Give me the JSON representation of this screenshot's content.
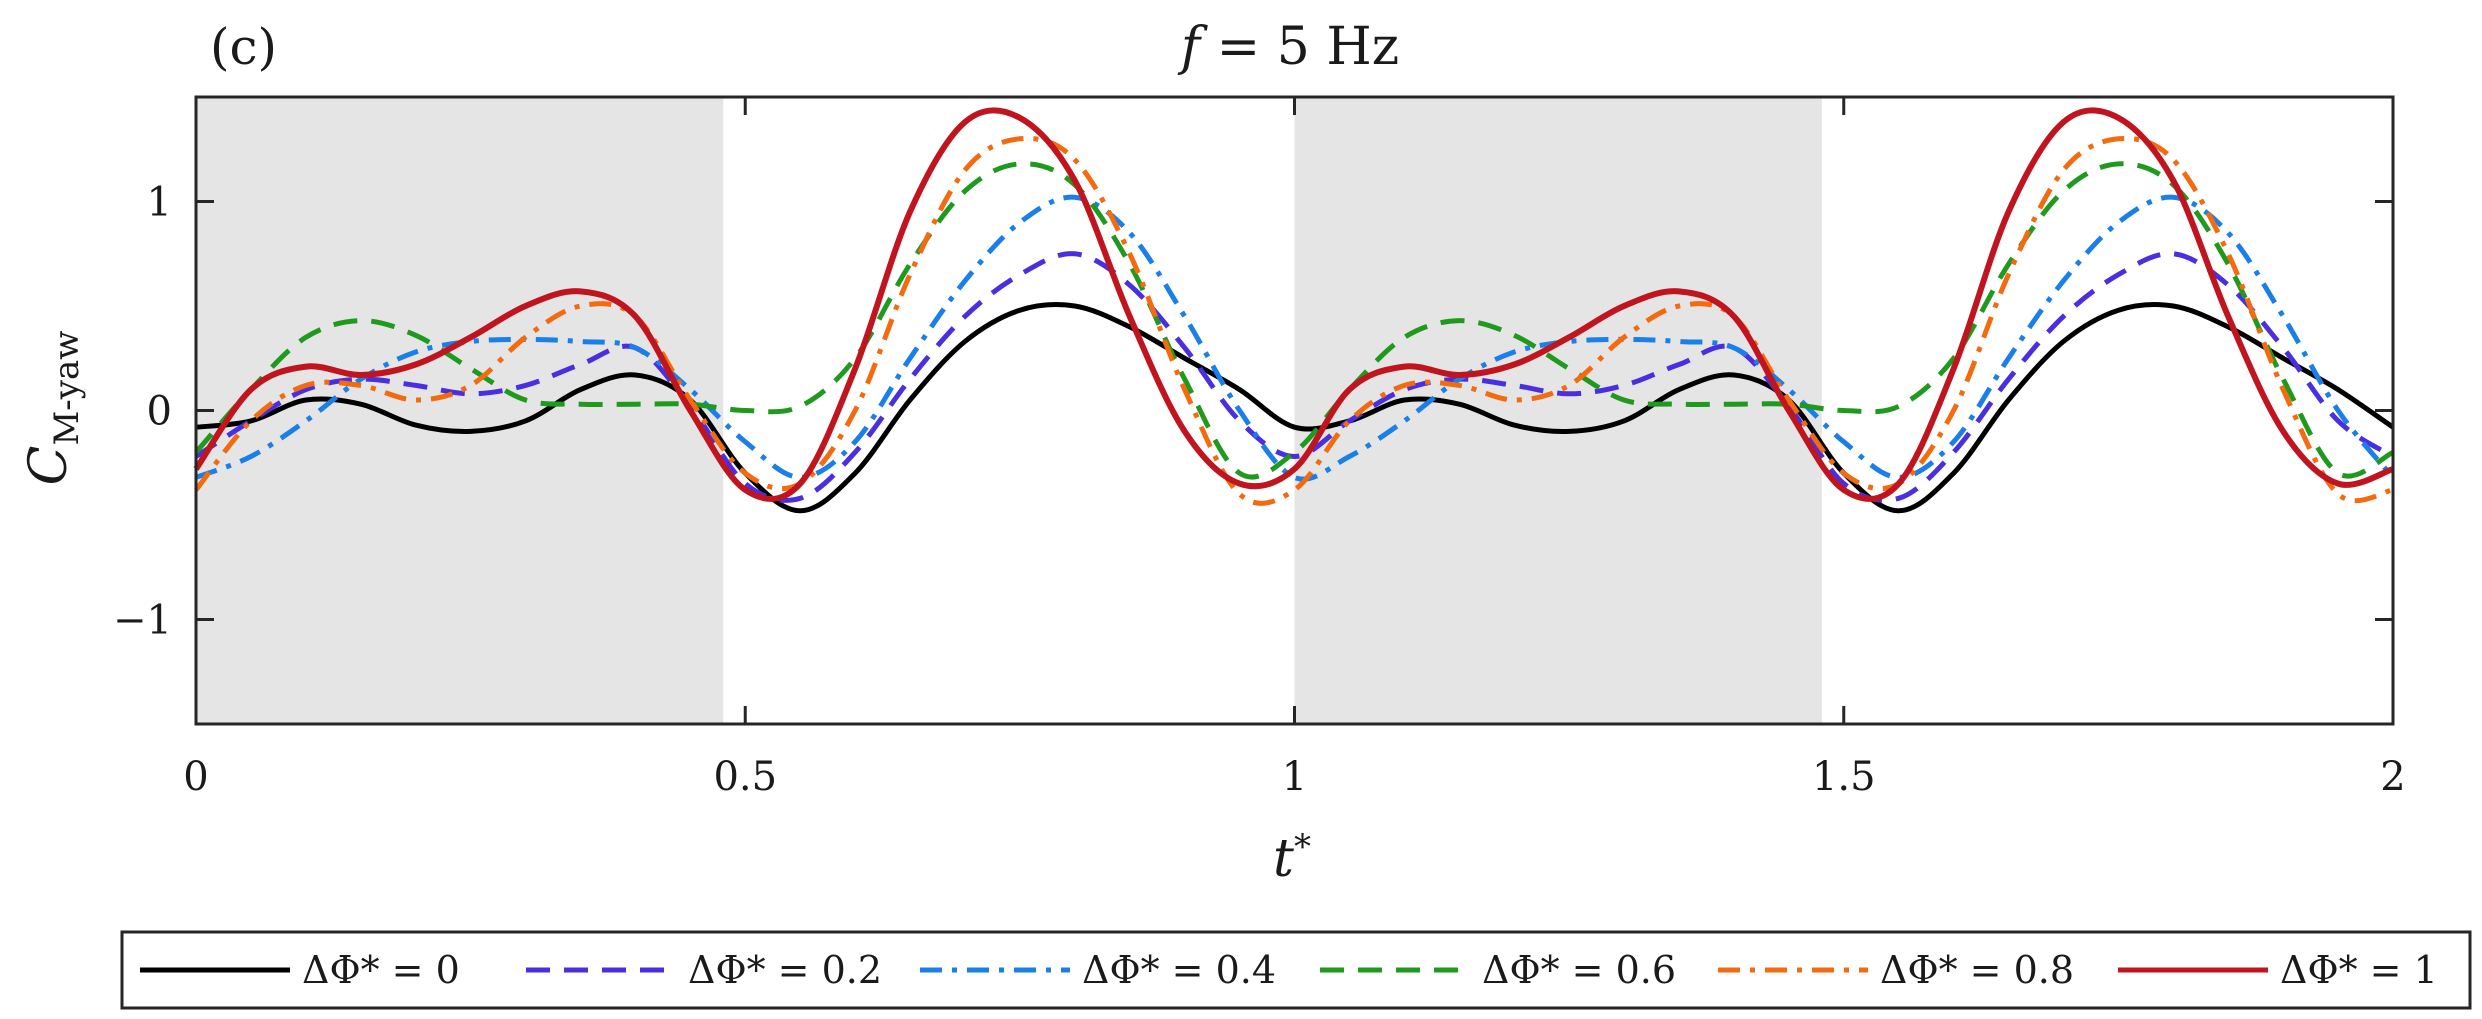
{
  "panel_label": "(c)",
  "title_var": "f",
  "title_rest": " = 5 Hz",
  "xlabel_var": "t",
  "xlabel_sup": "*",
  "ylabel_var": "C",
  "ylabel_sub": "M-yaw",
  "chart_data": {
    "type": "line",
    "title": "f = 5 Hz",
    "xlabel": "t*",
    "ylabel": "C_M-yaw",
    "xlim": [
      0,
      2
    ],
    "ylim": [
      -1.5,
      1.5
    ],
    "xticks": [
      0,
      0.5,
      1,
      1.5,
      2
    ],
    "xtick_labels": [
      "0",
      "0.5",
      "1",
      "1.5",
      "2"
    ],
    "yticks": [
      -1,
      0,
      1
    ],
    "ytick_labels": [
      "−1",
      "0",
      "1"
    ],
    "shaded_intervals": [
      [
        0,
        0.48
      ],
      [
        1,
        1.48
      ]
    ],
    "shade_color": "#e5e5e5",
    "legend_position": "bottom",
    "x": [
      0,
      0.05,
      0.1,
      0.15,
      0.2,
      0.25,
      0.3,
      0.35,
      0.4,
      0.45,
      0.5,
      0.55,
      0.6,
      0.65,
      0.7,
      0.75,
      0.8,
      0.85,
      0.9,
      0.95,
      1.0,
      1.05,
      1.1,
      1.15,
      1.2,
      1.25,
      1.3,
      1.35,
      1.4,
      1.45,
      1.5,
      1.55,
      1.6,
      1.65,
      1.7,
      1.75,
      1.8,
      1.85,
      1.9,
      1.95,
      2.0
    ],
    "series": [
      {
        "name": "ΔΦ* = 0",
        "color": "#000000",
        "dash": "solid",
        "values": [
          -0.08,
          -0.05,
          0.05,
          0.03,
          -0.07,
          -0.1,
          -0.05,
          0.1,
          0.17,
          0.05,
          -0.3,
          -0.48,
          -0.3,
          0.05,
          0.33,
          0.48,
          0.5,
          0.4,
          0.25,
          0.1,
          -0.08,
          -0.05,
          0.05,
          0.03,
          -0.07,
          -0.1,
          -0.05,
          0.1,
          0.17,
          0.05,
          -0.3,
          -0.48,
          -0.3,
          0.05,
          0.33,
          0.48,
          0.5,
          0.4,
          0.25,
          0.1,
          -0.08
        ]
      },
      {
        "name": "ΔΦ* = 0.2",
        "color": "#4a2fe0",
        "dash": "dash",
        "values": [
          -0.22,
          -0.05,
          0.1,
          0.15,
          0.12,
          0.08,
          0.12,
          0.22,
          0.3,
          0.02,
          -0.35,
          -0.42,
          -0.2,
          0.15,
          0.45,
          0.65,
          0.75,
          0.6,
          0.3,
          -0.05,
          -0.22,
          -0.05,
          0.1,
          0.15,
          0.12,
          0.08,
          0.12,
          0.22,
          0.3,
          0.02,
          -0.35,
          -0.42,
          -0.2,
          0.15,
          0.45,
          0.65,
          0.75,
          0.6,
          0.3,
          -0.05,
          -0.22
        ]
      },
      {
        "name": "ΔΦ* = 0.4",
        "color": "#1a7fe8",
        "dash": "dashdot",
        "values": [
          -0.32,
          -0.22,
          -0.05,
          0.15,
          0.28,
          0.33,
          0.34,
          0.33,
          0.3,
          0.1,
          -0.15,
          -0.32,
          -0.15,
          0.25,
          0.62,
          0.9,
          1.02,
          0.85,
          0.45,
          0.0,
          -0.32,
          -0.22,
          -0.05,
          0.15,
          0.28,
          0.33,
          0.34,
          0.33,
          0.3,
          0.1,
          -0.15,
          -0.32,
          -0.15,
          0.25,
          0.62,
          0.9,
          1.02,
          0.85,
          0.45,
          0.0,
          -0.32
        ]
      },
      {
        "name": "ΔΦ* = 0.6",
        "color": "#1f9a1f",
        "dash": "dash",
        "values": [
          -0.2,
          0.1,
          0.35,
          0.43,
          0.36,
          0.2,
          0.05,
          0.03,
          0.03,
          0.03,
          0.0,
          0.02,
          0.25,
          0.7,
          1.05,
          1.18,
          1.08,
          0.7,
          0.15,
          -0.3,
          -0.2,
          0.1,
          0.35,
          0.43,
          0.36,
          0.2,
          0.05,
          0.03,
          0.03,
          0.03,
          0.0,
          0.02,
          0.25,
          0.7,
          1.05,
          1.18,
          1.08,
          0.7,
          0.15,
          -0.3,
          -0.2
        ]
      },
      {
        "name": "ΔΦ* = 0.8",
        "color": "#f36a0f",
        "dash": "dashdot",
        "values": [
          -0.38,
          -0.05,
          0.12,
          0.12,
          0.05,
          0.12,
          0.35,
          0.5,
          0.45,
          0.05,
          -0.3,
          -0.35,
          0.0,
          0.65,
          1.15,
          1.3,
          1.2,
          0.75,
          0.1,
          -0.4,
          -0.38,
          -0.05,
          0.12,
          0.12,
          0.05,
          0.12,
          0.35,
          0.5,
          0.45,
          0.05,
          -0.3,
          -0.35,
          0.0,
          0.65,
          1.15,
          1.3,
          1.2,
          0.75,
          0.1,
          -0.4,
          -0.38
        ]
      },
      {
        "name": "ΔΦ* = 1",
        "color": "#c0151f",
        "dash": "solid",
        "values": [
          -0.28,
          0.1,
          0.21,
          0.17,
          0.22,
          0.35,
          0.5,
          0.57,
          0.45,
          0.0,
          -0.38,
          -0.35,
          0.2,
          0.95,
          1.38,
          1.4,
          1.1,
          0.45,
          -0.1,
          -0.35,
          -0.28,
          0.1,
          0.21,
          0.17,
          0.22,
          0.35,
          0.5,
          0.57,
          0.45,
          0.0,
          -0.38,
          -0.35,
          0.2,
          0.95,
          1.38,
          1.4,
          1.1,
          0.45,
          -0.1,
          -0.35,
          -0.28
        ]
      }
    ]
  }
}
